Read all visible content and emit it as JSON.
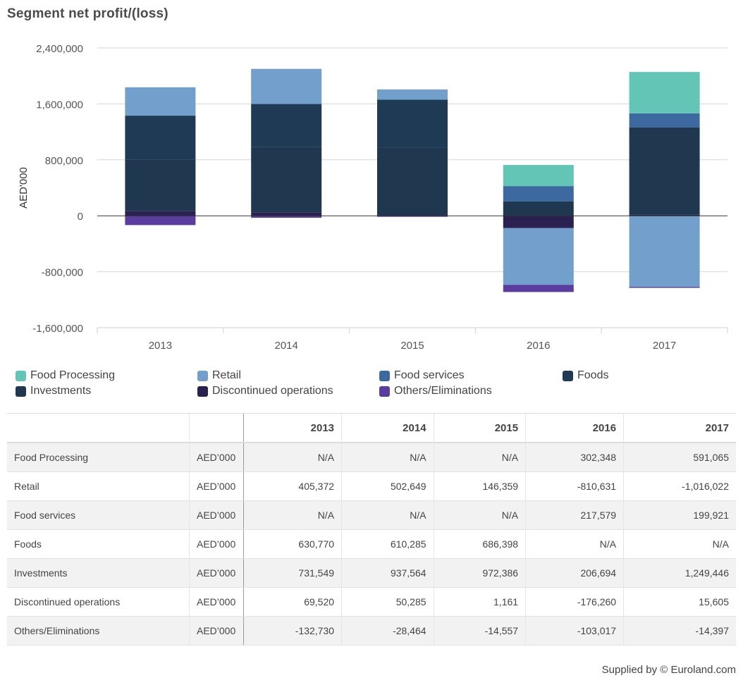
{
  "title": "Segment net profit/(loss)",
  "footer": "Supplied by © Euroland.com",
  "chart_data": {
    "type": "bar",
    "stacked": true,
    "title": "Segment net profit/(loss)",
    "ylabel": "AED'000",
    "xlabel": "",
    "categories": [
      "2013",
      "2014",
      "2015",
      "2016",
      "2017"
    ],
    "ylim": [
      -1600000,
      2400000
    ],
    "yticks": [
      2400000,
      1600000,
      800000,
      0,
      -800000,
      -1600000
    ],
    "ytick_labels": [
      "2,400,000",
      "1,600,000",
      "800,000",
      "0",
      "-800,000",
      "-1,600,000"
    ],
    "grid": true,
    "legend_position": "bottom",
    "series": [
      {
        "name": "Food Processing",
        "color": "#63c5b6",
        "values": [
          null,
          null,
          null,
          302348,
          591065
        ]
      },
      {
        "name": "Retail",
        "color": "#729fcb",
        "values": [
          405372,
          502649,
          146359,
          -810631,
          -1016022
        ]
      },
      {
        "name": "Food services",
        "color": "#3c6aa0",
        "values": [
          null,
          null,
          null,
          217579,
          199921
        ]
      },
      {
        "name": "Foods",
        "color": "#1f3a55",
        "values": [
          630770,
          610285,
          686398,
          null,
          null
        ]
      },
      {
        "name": "Investments",
        "color": "#1f3850",
        "values": [
          731549,
          937564,
          972386,
          206694,
          1249446
        ]
      },
      {
        "name": "Discontinued operations",
        "color": "#2b2150",
        "values": [
          69520,
          50285,
          1161,
          -176260,
          15605
        ]
      },
      {
        "name": "Others/Eliminations",
        "color": "#5a3d9e",
        "values": [
          -132730,
          -28464,
          -14557,
          -103017,
          -14397
        ]
      }
    ]
  },
  "table": {
    "years": [
      "2013",
      "2014",
      "2015",
      "2016",
      "2017"
    ],
    "rows": [
      {
        "label": "Food Processing",
        "unit": "AED’000",
        "values": [
          "N/A",
          "N/A",
          "N/A",
          "302,348",
          "591,065"
        ]
      },
      {
        "label": "Retail",
        "unit": "AED’000",
        "values": [
          "405,372",
          "502,649",
          "146,359",
          "-810,631",
          "-1,016,022"
        ]
      },
      {
        "label": "Food services",
        "unit": "AED’000",
        "values": [
          "N/A",
          "N/A",
          "N/A",
          "217,579",
          "199,921"
        ]
      },
      {
        "label": "Foods",
        "unit": "AED’000",
        "values": [
          "630,770",
          "610,285",
          "686,398",
          "N/A",
          "N/A"
        ]
      },
      {
        "label": "Investments",
        "unit": "AED’000",
        "values": [
          "731,549",
          "937,564",
          "972,386",
          "206,694",
          "1,249,446"
        ]
      },
      {
        "label": "Discontinued operations",
        "unit": "AED’000",
        "values": [
          "69,520",
          "50,285",
          "1,161",
          "-176,260",
          "15,605"
        ]
      },
      {
        "label": "Others/Eliminations",
        "unit": "AED’000",
        "values": [
          "-132,730",
          "-28,464",
          "-14,557",
          "-103,017",
          "-14,397"
        ]
      }
    ]
  }
}
